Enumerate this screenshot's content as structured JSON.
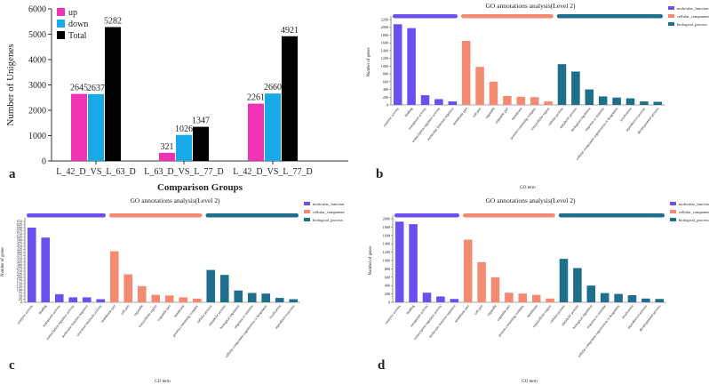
{
  "panel_labels": {
    "a": "a",
    "b": "b",
    "c": "c",
    "d": "d"
  },
  "chart_data": [
    {
      "id": "a",
      "type": "bar",
      "title": "",
      "xlabel": "Comparison Groups",
      "ylabel": "Number of Unigenes",
      "ylim": [
        0,
        6000
      ],
      "yticks": [
        0,
        1000,
        2000,
        3000,
        4000,
        5000,
        6000
      ],
      "categories": [
        "L_42_D_VS_L_63_D",
        "L_63_D_VS_L_77_D",
        "L_42_D_VS_L_77_D"
      ],
      "series": [
        {
          "name": "up",
          "color": "#f033b3",
          "values": [
            2645,
            321,
            2261
          ]
        },
        {
          "name": "down",
          "color": "#17a9e8",
          "values": [
            2637,
            1026,
            2660
          ]
        },
        {
          "name": "Total",
          "color": "#000000",
          "values": [
            5282,
            1347,
            4921
          ]
        }
      ],
      "legend_position": "top-left"
    },
    {
      "id": "b",
      "type": "bar",
      "title": "GO annotations analysis(Level 2)",
      "xlabel": "GO term",
      "ylabel": "Number of genes",
      "ylim": [
        0,
        2200
      ],
      "yticks": [
        0,
        200,
        400,
        600,
        800,
        1000,
        1200,
        1400,
        1600,
        1800,
        2000,
        2200
      ],
      "legend": [
        {
          "name": "molecular_function",
          "color": "#6b4ff0"
        },
        {
          "name": "cellular_component",
          "color": "#f48a72"
        },
        {
          "name": "biological_process",
          "color": "#1f6e8c"
        }
      ],
      "bars": [
        {
          "label": "catalytic activity",
          "value": 2080,
          "group": 0
        },
        {
          "label": "binding",
          "value": 1980,
          "group": 0
        },
        {
          "label": "transporter activity",
          "value": 250,
          "group": 0
        },
        {
          "label": "transcription regulator activity",
          "value": 150,
          "group": 0
        },
        {
          "label": "molecular function regulator",
          "value": 90,
          "group": 0
        },
        {
          "label": "membrane part",
          "value": 1650,
          "group": 1
        },
        {
          "label": "cell part",
          "value": 980,
          "group": 1
        },
        {
          "label": "organelle",
          "value": 600,
          "group": 1
        },
        {
          "label": "organelle part",
          "value": 230,
          "group": 1
        },
        {
          "label": "membrane",
          "value": 210,
          "group": 1
        },
        {
          "label": "protein-containing complex",
          "value": 200,
          "group": 1
        },
        {
          "label": "extracellular region",
          "value": 90,
          "group": 1
        },
        {
          "label": "cellular process",
          "value": 1050,
          "group": 2
        },
        {
          "label": "metabolic process",
          "value": 860,
          "group": 2
        },
        {
          "label": "biological regulation",
          "value": 400,
          "group": 2
        },
        {
          "label": "response to stimulus",
          "value": 220,
          "group": 2
        },
        {
          "label": "cellular component organization or biogenesis",
          "value": 190,
          "group": 2
        },
        {
          "label": "localization",
          "value": 170,
          "group": 2
        },
        {
          "label": "reproductive process",
          "value": 90,
          "group": 2
        },
        {
          "label": "developmental process",
          "value": 80,
          "group": 2
        }
      ]
    },
    {
      "id": "c",
      "type": "bar",
      "title": "GO annotations analysis(Level 2)",
      "xlabel": "GO term",
      "ylabel": "Number of genes",
      "ylim": [
        0,
        650
      ],
      "yticks": [
        0,
        25,
        50,
        75,
        100,
        125,
        150,
        175,
        200,
        225,
        250,
        275,
        300,
        325,
        350,
        375,
        400,
        425,
        450,
        475,
        500,
        525,
        550,
        575,
        600,
        625,
        650
      ],
      "legend": [
        {
          "name": "molecular_function",
          "color": "#6b4ff0"
        },
        {
          "name": "cellular_component",
          "color": "#f48a72"
        },
        {
          "name": "biological_process",
          "color": "#1f6e8c"
        }
      ],
      "bars": [
        {
          "label": "catalytic activity",
          "value": 600,
          "group": 0
        },
        {
          "label": "binding",
          "value": 520,
          "group": 0
        },
        {
          "label": "transporter activity",
          "value": 65,
          "group": 0
        },
        {
          "label": "transcription regulator activity",
          "value": 40,
          "group": 0
        },
        {
          "label": "molecular function regulator",
          "value": 40,
          "group": 0
        },
        {
          "label": "structural molecule activity",
          "value": 25,
          "group": 0
        },
        {
          "label": "membrane part",
          "value": 410,
          "group": 1
        },
        {
          "label": "cell part",
          "value": 225,
          "group": 1
        },
        {
          "label": "organelle",
          "value": 130,
          "group": 1
        },
        {
          "label": "extracellular region",
          "value": 60,
          "group": 1
        },
        {
          "label": "organelle part",
          "value": 55,
          "group": 1
        },
        {
          "label": "membrane",
          "value": 40,
          "group": 1
        },
        {
          "label": "protein-containing complex",
          "value": 30,
          "group": 1
        },
        {
          "label": "cellular process",
          "value": 260,
          "group": 2
        },
        {
          "label": "metabolic process",
          "value": 220,
          "group": 2
        },
        {
          "label": "biological regulation",
          "value": 95,
          "group": 2
        },
        {
          "label": "response to stimulus",
          "value": 75,
          "group": 2
        },
        {
          "label": "cellular component organization or biogenesis",
          "value": 70,
          "group": 2
        },
        {
          "label": "localization",
          "value": 35,
          "group": 2
        },
        {
          "label": "reproductive process",
          "value": 25,
          "group": 2
        }
      ]
    },
    {
      "id": "d",
      "type": "bar",
      "title": "GO annotations analysis(Level 2)",
      "xlabel": "GO term",
      "ylabel": "Number of genes",
      "ylim": [
        0,
        2000
      ],
      "yticks": [
        0,
        200,
        400,
        600,
        800,
        1000,
        1200,
        1400,
        1600,
        1800,
        2000
      ],
      "legend": [
        {
          "name": "molecular_function",
          "color": "#6b4ff0"
        },
        {
          "name": "cellular_component",
          "color": "#f48a72"
        },
        {
          "name": "biological_process",
          "color": "#1f6e8c"
        }
      ],
      "bars": [
        {
          "label": "catalytic activity",
          "value": 1930,
          "group": 0
        },
        {
          "label": "binding",
          "value": 1870,
          "group": 0
        },
        {
          "label": "transporter activity",
          "value": 230,
          "group": 0
        },
        {
          "label": "transcription regulator activity",
          "value": 140,
          "group": 0
        },
        {
          "label": "molecular function regulator",
          "value": 80,
          "group": 0
        },
        {
          "label": "membrane part",
          "value": 1500,
          "group": 1
        },
        {
          "label": "cell part",
          "value": 960,
          "group": 1
        },
        {
          "label": "organelle",
          "value": 600,
          "group": 1
        },
        {
          "label": "organelle part",
          "value": 230,
          "group": 1
        },
        {
          "label": "protein-containing complex",
          "value": 210,
          "group": 1
        },
        {
          "label": "membrane",
          "value": 180,
          "group": 1
        },
        {
          "label": "extracellular region",
          "value": 90,
          "group": 1
        },
        {
          "label": "cellular process",
          "value": 1040,
          "group": 2
        },
        {
          "label": "metabolic process",
          "value": 820,
          "group": 2
        },
        {
          "label": "biological regulation",
          "value": 400,
          "group": 2
        },
        {
          "label": "response to stimulus",
          "value": 220,
          "group": 2
        },
        {
          "label": "cellular component organization or biogenesis",
          "value": 200,
          "group": 2
        },
        {
          "label": "localization",
          "value": 170,
          "group": 2
        },
        {
          "label": "reproductive process",
          "value": 90,
          "group": 2
        },
        {
          "label": "developmental process",
          "value": 80,
          "group": 2
        }
      ]
    }
  ]
}
